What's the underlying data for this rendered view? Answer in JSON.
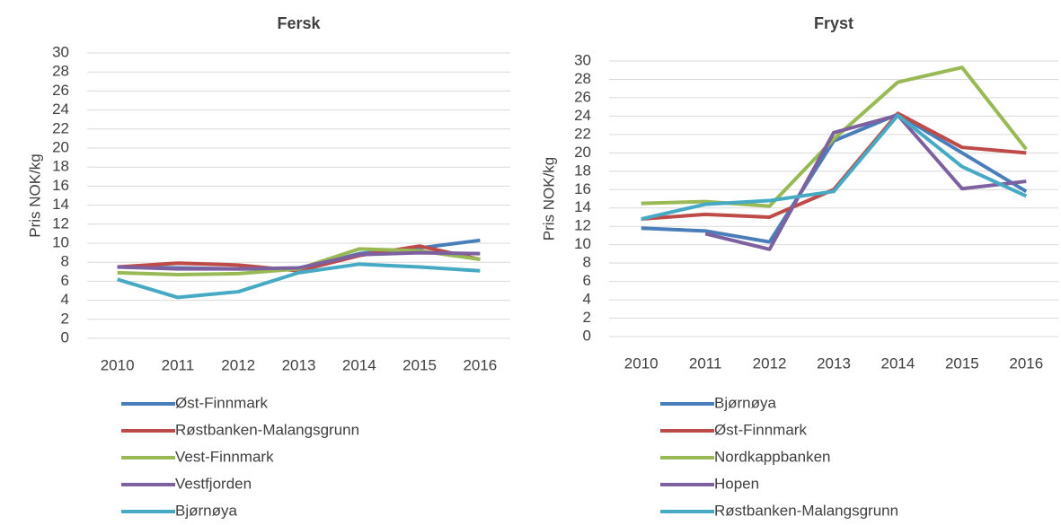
{
  "chart_data": [
    {
      "type": "line",
      "title": "Fersk",
      "y_label": "Pris NOK/kg",
      "categories": [
        "2010",
        "2011",
        "2012",
        "2013",
        "2014",
        "2015",
        "2016"
      ],
      "ylim": [
        0,
        30
      ],
      "yticks": [
        0,
        2,
        4,
        6,
        8,
        10,
        12,
        14,
        16,
        18,
        20,
        22,
        24,
        26,
        28,
        30
      ],
      "grid": true,
      "series": [
        {
          "name": "Øst-Finnmark",
          "color": "#4a7ebb",
          "values": [
            7.5,
            7.4,
            7.3,
            7.3,
            8.9,
            9.5,
            10.3
          ]
        },
        {
          "name": "Røstbanken-Malangsgrunn",
          "color": "#be4b48",
          "values": [
            7.5,
            7.9,
            7.7,
            7.1,
            8.7,
            9.7,
            8.3
          ]
        },
        {
          "name": "Vest-Finnmark",
          "color": "#98b954",
          "values": [
            6.9,
            6.7,
            6.8,
            7.3,
            9.4,
            9.2,
            8.3
          ]
        },
        {
          "name": "Vestfjorden",
          "color": "#7d60a0",
          "values": [
            7.5,
            7.3,
            7.3,
            7.4,
            8.8,
            9.0,
            8.9
          ]
        },
        {
          "name": "Bjørnøya",
          "color": "#46aac5",
          "values": [
            6.2,
            4.3,
            4.9,
            6.9,
            7.8,
            7.5,
            7.1
          ]
        }
      ]
    },
    {
      "type": "line",
      "title": "Fryst",
      "y_label": "Pris NOK/kg",
      "categories": [
        "2010",
        "2011",
        "2012",
        "2013",
        "2014",
        "2015",
        "2016"
      ],
      "ylim": [
        0,
        30
      ],
      "yticks": [
        0,
        2,
        4,
        6,
        8,
        10,
        12,
        14,
        16,
        18,
        20,
        22,
        24,
        26,
        28,
        30
      ],
      "grid": true,
      "series": [
        {
          "name": "Bjørnøya",
          "color": "#4a7ebb",
          "values": [
            11.8,
            11.5,
            10.3,
            21.3,
            24.2,
            20.0,
            15.8
          ]
        },
        {
          "name": "Øst-Finnmark",
          "color": "#be4b48",
          "values": [
            12.8,
            13.3,
            13.0,
            16.0,
            24.3,
            20.6,
            20.0
          ]
        },
        {
          "name": "Nordkappbanken",
          "color": "#98b954",
          "values": [
            14.5,
            14.7,
            14.2,
            21.5,
            27.7,
            29.3,
            20.4
          ]
        },
        {
          "name": "Hopen",
          "color": "#7d60a0",
          "values": [
            null,
            11.2,
            9.5,
            22.2,
            24.1,
            16.1,
            16.9
          ]
        },
        {
          "name": "Røstbanken-Malangsgrunn",
          "color": "#46aac5",
          "values": [
            12.8,
            14.4,
            14.8,
            15.8,
            24.1,
            18.5,
            15.3
          ]
        }
      ]
    }
  ]
}
